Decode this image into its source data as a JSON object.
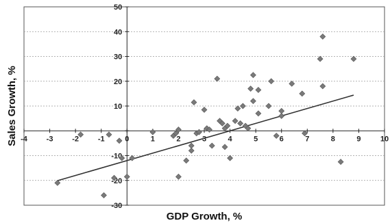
{
  "chart_data": {
    "type": "scatter",
    "xlabel": "GDP Growth, %",
    "ylabel": "Sales Growth, %",
    "title": "",
    "xlim": [
      -4,
      10
    ],
    "ylim": [
      -30,
      50
    ],
    "x_ticks": [
      -4,
      -3,
      -2,
      -1,
      0,
      1,
      2,
      3,
      4,
      5,
      6,
      7,
      8,
      9,
      10
    ],
    "y_ticks": [
      -30,
      -20,
      -10,
      0,
      10,
      20,
      30,
      40,
      50
    ],
    "grid": "horizontal dashed",
    "legend": "none",
    "marker": "diamond",
    "marker_color": "#7a7a7a",
    "line_color": "#333333",
    "trendline": {
      "slope": 3.0,
      "intercept": -12.0
    },
    "points": [
      [
        -2.7,
        -21
      ],
      [
        -1.8,
        -1.5
      ],
      [
        -0.9,
        -26
      ],
      [
        -0.7,
        -1.5
      ],
      [
        -0.5,
        -19
      ],
      [
        -0.3,
        -4
      ],
      [
        -0.2,
        -11
      ],
      [
        0.0,
        -18.5
      ],
      [
        0.2,
        -11
      ],
      [
        1.0,
        -0.5
      ],
      [
        1.8,
        -2
      ],
      [
        1.9,
        -1
      ],
      [
        2.0,
        0.5
      ],
      [
        2.0,
        -18.5
      ],
      [
        2.3,
        -12
      ],
      [
        2.5,
        -6
      ],
      [
        2.5,
        -8
      ],
      [
        2.6,
        11.5
      ],
      [
        2.7,
        -1
      ],
      [
        2.8,
        -0.5
      ],
      [
        3.0,
        8.5
      ],
      [
        3.1,
        1
      ],
      [
        3.2,
        0.5
      ],
      [
        3.3,
        -6
      ],
      [
        3.5,
        21
      ],
      [
        3.6,
        4
      ],
      [
        3.7,
        3
      ],
      [
        3.8,
        -6.5
      ],
      [
        3.8,
        1
      ],
      [
        3.9,
        2
      ],
      [
        4.0,
        -11
      ],
      [
        4.2,
        4
      ],
      [
        4.3,
        9
      ],
      [
        4.4,
        3
      ],
      [
        4.5,
        10
      ],
      [
        4.6,
        2
      ],
      [
        4.7,
        1
      ],
      [
        4.8,
        17
      ],
      [
        4.9,
        22.5
      ],
      [
        4.9,
        12
      ],
      [
        5.1,
        7
      ],
      [
        5.1,
        16.5
      ],
      [
        5.5,
        10
      ],
      [
        5.6,
        20
      ],
      [
        5.8,
        -2
      ],
      [
        6.0,
        6
      ],
      [
        6.0,
        8
      ],
      [
        6.4,
        19
      ],
      [
        6.8,
        15
      ],
      [
        6.9,
        -1
      ],
      [
        7.5,
        29
      ],
      [
        7.6,
        38
      ],
      [
        7.6,
        18
      ],
      [
        8.3,
        -12.5
      ],
      [
        8.8,
        29
      ]
    ]
  }
}
